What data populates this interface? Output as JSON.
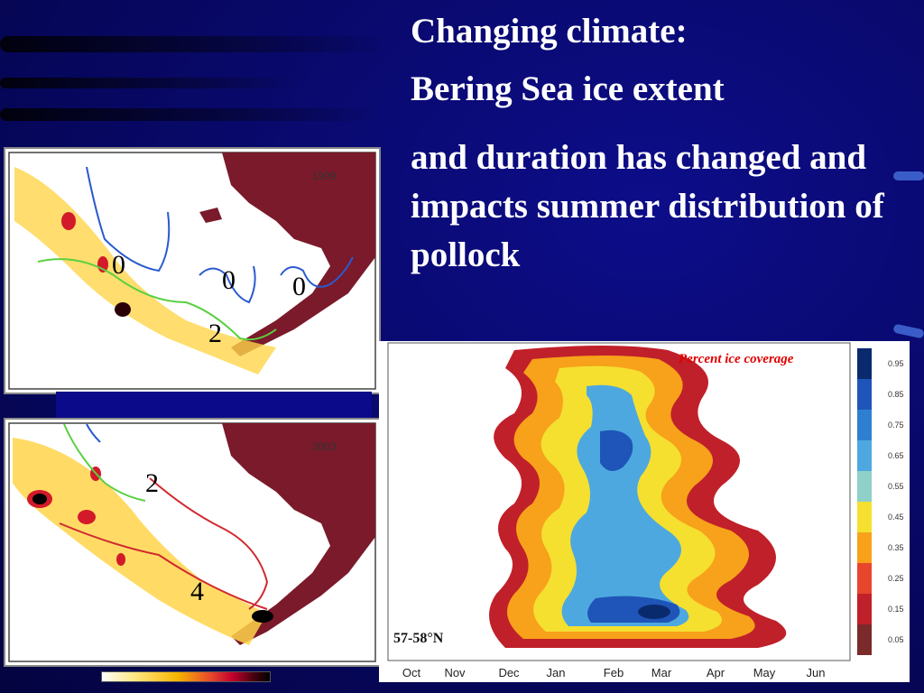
{
  "slide": {
    "title_line1": "Changing climate:",
    "title_line2": "Bering Sea ice extent",
    "body": "and duration has changed and impacts summer distribution of pollock"
  },
  "maps": [
    {
      "year": "1999",
      "contour_labels": [
        "0",
        "0",
        "0",
        "2"
      ]
    },
    {
      "year": "2003",
      "contour_labels": [
        "2",
        "4"
      ]
    }
  ],
  "ice_chart": {
    "title": "Percent ice coverage",
    "latitude_label": "57-58°N",
    "months": [
      "Oct",
      "Nov",
      "Dec",
      "Jan",
      "Feb",
      "Mar",
      "Apr",
      "May",
      "Jun"
    ],
    "colorbar_ticks": [
      "0.95",
      "0.85",
      "0.75",
      "0.65",
      "0.55",
      "0.45",
      "0.35",
      "0.25",
      "0.15",
      "0.05"
    ],
    "colorbar_colors": [
      "#0a2a6e",
      "#1f55b8",
      "#2f7fd0",
      "#4ea8e0",
      "#8fd0c8",
      "#f5e030",
      "#f7a21a",
      "#e8462c",
      "#c0202a",
      "#7a2a2a"
    ]
  },
  "colors": {
    "background": "#0a0a6e",
    "title_text": "#ffffff",
    "land": "#7a1a2a",
    "accent_label": "#e00000"
  }
}
